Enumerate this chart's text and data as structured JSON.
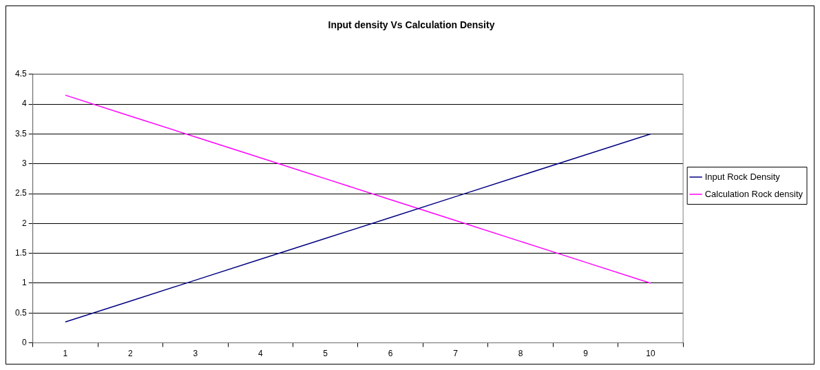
{
  "chart_data": {
    "type": "line",
    "title": "Input density Vs Calculation Density",
    "categories": [
      "1",
      "2",
      "3",
      "4",
      "5",
      "6",
      "7",
      "8",
      "9",
      "10"
    ],
    "series": [
      {
        "name": "Input Rock Density",
        "color": "#000080",
        "values": [
          0.35,
          0.7,
          1.05,
          1.4,
          1.75,
          2.1,
          2.45,
          2.8,
          3.15,
          3.5
        ]
      },
      {
        "name": "Calculation Rock density",
        "color": "#ff00ff",
        "values": [
          4.15,
          3.8,
          3.45,
          3.1,
          2.75,
          2.4,
          2.05,
          1.7,
          1.35,
          1.0
        ]
      }
    ],
    "ylim": [
      0,
      4.5
    ],
    "yticks": [
      0,
      0.5,
      1,
      1.5,
      2,
      2.5,
      3,
      3.5,
      4,
      4.5
    ],
    "grid": "y",
    "legend": "right",
    "marker": "none",
    "line_style": "solid"
  }
}
